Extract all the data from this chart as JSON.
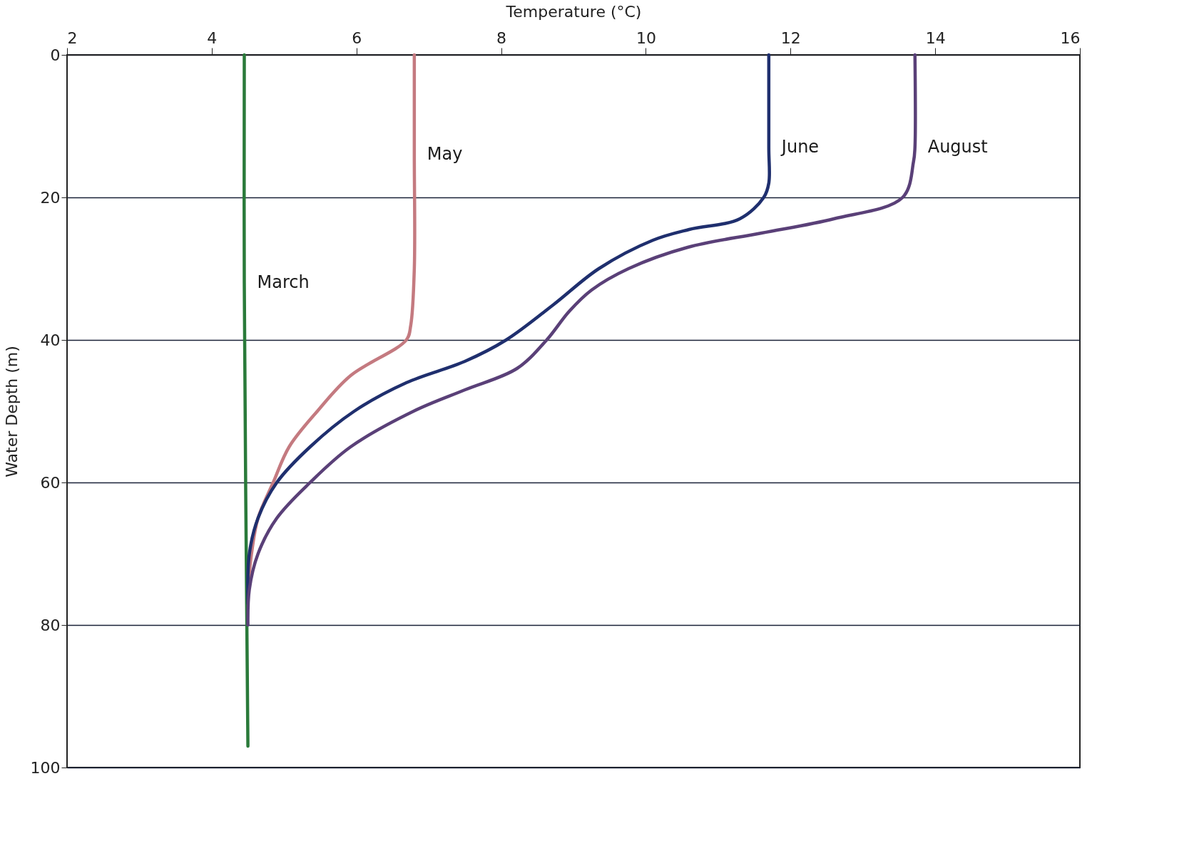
{
  "chart_data": {
    "type": "line",
    "xlabel": "Temperature (°C)",
    "ylabel": "Water Depth (m)",
    "xlim": [
      2,
      16
    ],
    "xticks": [
      2,
      4,
      6,
      8,
      10,
      12,
      14,
      16
    ],
    "ylim": [
      100,
      0
    ],
    "yticks": [
      0,
      20,
      40,
      60,
      80,
      100
    ],
    "grid": "y",
    "legend": false,
    "line_style": "solid",
    "marker": "none",
    "series": [
      {
        "name": "March",
        "color": "#2a7a3a",
        "x": [
          4.45,
          4.45,
          4.5
        ],
        "values": [
          0,
          32,
          97
        ]
      },
      {
        "name": "May",
        "color": "#c47a80",
        "x": [
          6.8,
          6.8,
          6.8,
          6.75,
          6.69,
          5.92,
          5.46,
          5.07,
          4.85,
          4.64,
          4.55,
          4.5
        ],
        "values": [
          0,
          14,
          30,
          38,
          40,
          45,
          50,
          55,
          60,
          65,
          70,
          75
        ]
      },
      {
        "name": "June",
        "color": "#1f2f6e",
        "x": [
          11.7,
          11.7,
          11.7,
          11.63,
          11.3,
          10.6,
          10.1,
          9.35,
          8.73,
          8.07,
          7.5,
          6.69,
          5.97,
          5.36,
          4.9,
          4.64,
          4.52,
          4.5
        ],
        "values": [
          0,
          13,
          18,
          20,
          23,
          24.5,
          26,
          30,
          35,
          40,
          43,
          46,
          50,
          55,
          60,
          65,
          70,
          77
        ]
      },
      {
        "name": "August",
        "color": "#5a4078",
        "x": [
          13.72,
          13.72,
          13.7,
          13.55,
          12.6,
          11.6,
          10.58,
          9.76,
          9.25,
          8.94,
          8.63,
          8.22,
          7.5,
          6.79,
          5.92,
          5.36,
          4.9,
          4.64,
          4.52,
          4.5
        ],
        "values": [
          0,
          13,
          15,
          20,
          23,
          25,
          27,
          30,
          33,
          36,
          40,
          44,
          47,
          50,
          55,
          60,
          65,
          70,
          75,
          80
        ]
      }
    ]
  }
}
